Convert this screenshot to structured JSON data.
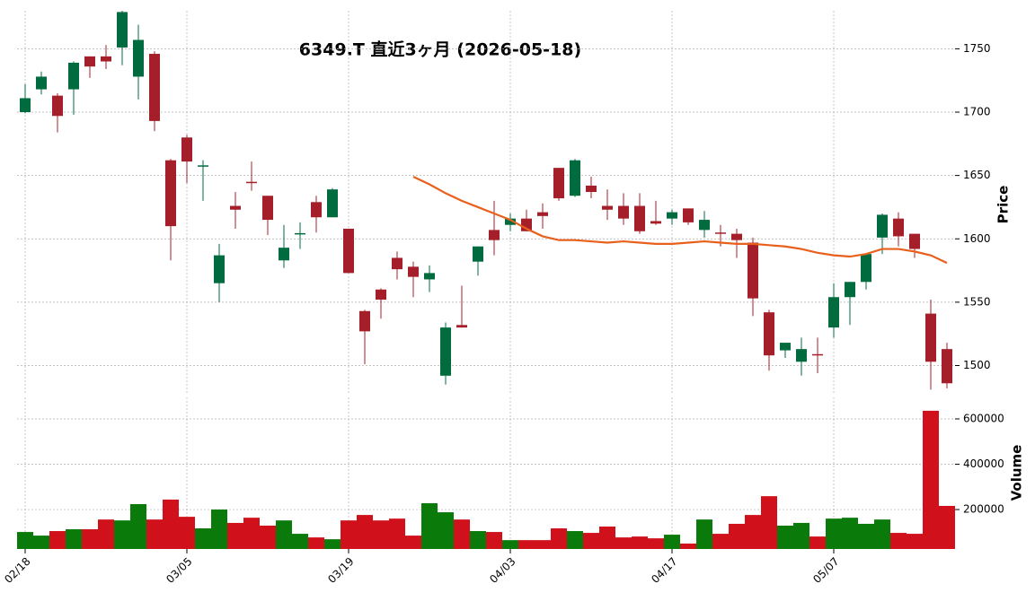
{
  "chart_data": {
    "type": "candlestick",
    "title": "6349.T 直近3ヶ月 (2026-05-18)",
    "categories": [
      "02/18",
      null,
      null,
      null,
      null,
      null,
      null,
      null,
      null,
      null,
      "03/05",
      null,
      null,
      null,
      null,
      null,
      null,
      null,
      null,
      null,
      "03/19",
      null,
      null,
      null,
      null,
      null,
      null,
      null,
      null,
      null,
      "04/03",
      null,
      null,
      null,
      null,
      null,
      null,
      null,
      null,
      null,
      "04/17",
      null,
      null,
      null,
      null,
      null,
      null,
      null,
      null,
      null,
      "05/07",
      null,
      null,
      null,
      null,
      null,
      null,
      null
    ],
    "open": [
      1700,
      1718,
      1713,
      1718,
      1744,
      1744,
      1751,
      1728,
      1746,
      1662,
      1680,
      1657,
      1565,
      1626,
      1645,
      1634,
      1583,
      1604,
      1629,
      1617,
      1608,
      1543,
      1560,
      1585,
      1578,
      1568,
      1492,
      1532,
      1582,
      1607,
      1611,
      1616,
      1621,
      1656,
      1634,
      1642,
      1626,
      1626,
      1626,
      1614,
      1616,
      1624,
      1607,
      1605,
      1604,
      1597,
      1542,
      1512,
      1503,
      1509,
      1530,
      1554,
      1566,
      1601,
      1616,
      1604,
      1541,
      1513
    ],
    "high": [
      1722,
      1732,
      1715,
      1740,
      1744,
      1753,
      1780,
      1769,
      1748,
      1663,
      1682,
      1662,
      1596,
      1637,
      1661,
      1634,
      1611,
      1613,
      1634,
      1640,
      1608,
      1544,
      1561,
      1590,
      1582,
      1579,
      1534,
      1563,
      1594,
      1630,
      1620,
      1623,
      1628,
      1656,
      1663,
      1649,
      1639,
      1636,
      1636,
      1630,
      1623,
      1624,
      1622,
      1611,
      1608,
      1601,
      1544,
      1518,
      1522,
      1522,
      1565,
      1566,
      1588,
      1620,
      1621,
      1604,
      1552,
      1518
    ],
    "low": [
      1699,
      1714,
      1684,
      1698,
      1727,
      1734,
      1737,
      1710,
      1685,
      1583,
      1644,
      1630,
      1550,
      1608,
      1638,
      1603,
      1577,
      1592,
      1605,
      1617,
      1573,
      1501,
      1537,
      1568,
      1554,
      1558,
      1485,
      1530,
      1571,
      1587,
      1606,
      1606,
      1608,
      1630,
      1633,
      1632,
      1615,
      1611,
      1604,
      1611,
      1611,
      1611,
      1601,
      1594,
      1585,
      1539,
      1496,
      1506,
      1492,
      1494,
      1522,
      1532,
      1560,
      1588,
      1594,
      1585,
      1481,
      1482
    ],
    "close": [
      1711,
      1728,
      1697,
      1739,
      1736,
      1740,
      1779,
      1757,
      1693,
      1610,
      1661,
      1658,
      1587,
      1623,
      1644,
      1615,
      1593,
      1604.5,
      1617,
      1639,
      1573,
      1527,
      1552,
      1576,
      1570,
      1573,
      1530,
      1530,
      1594,
      1599,
      1616,
      1606,
      1618,
      1632,
      1662,
      1637,
      1623,
      1616,
      1606,
      1612,
      1621,
      1613,
      1615,
      1604,
      1599,
      1553,
      1508,
      1518,
      1513,
      1508,
      1554,
      1566,
      1588,
      1619,
      1602,
      1592,
      1503,
      1486
    ],
    "up_color": "#006b3f",
    "down_color": "#a51f2a",
    "ma": {
      "color": "#e8601c",
      "values": [
        null,
        null,
        null,
        null,
        null,
        null,
        null,
        null,
        null,
        null,
        null,
        null,
        null,
        null,
        null,
        null,
        null,
        null,
        null,
        null,
        null,
        null,
        null,
        null,
        1649,
        1643,
        1636,
        1630,
        1625,
        1620,
        1615,
        1608,
        1602,
        1599,
        1599,
        1598,
        1597,
        1598,
        1597,
        1596,
        1596,
        1597,
        1598,
        1597,
        1596,
        1596,
        1595,
        1594,
        1592,
        1589,
        1587,
        1586,
        1588,
        1592,
        1592,
        1590,
        1587,
        1581
      ]
    },
    "ylim": [
      1477,
      1780
    ],
    "yticks": [
      1500,
      1550,
      1600,
      1650,
      1700,
      1750
    ],
    "ylabel": "Price",
    "grid": true,
    "volume": {
      "ylabel": "Volume",
      "ylim": [
        26000,
        695000
      ],
      "yticks": [
        200000,
        400000,
        600000
      ],
      "up_color": "#0a7a0a",
      "down_color": "#d0111b",
      "values": [
        101000,
        85000,
        105000,
        113000,
        113000,
        156000,
        152000,
        224000,
        156000,
        244000,
        168000,
        117000,
        200000,
        141000,
        164000,
        129000,
        152000,
        93000,
        77000,
        69000,
        152000,
        176000,
        152000,
        160000,
        85000,
        228000,
        188000,
        156000,
        105000,
        101000,
        65000,
        65000,
        65000,
        117000,
        105000,
        97000,
        125000,
        77000,
        81000,
        73000,
        89000,
        50000,
        156000,
        93000,
        137000,
        176000,
        259000,
        129000,
        141000,
        81000,
        160000,
        164000,
        137000,
        156000,
        97000,
        93000,
        636000,
        216000
      ]
    }
  }
}
